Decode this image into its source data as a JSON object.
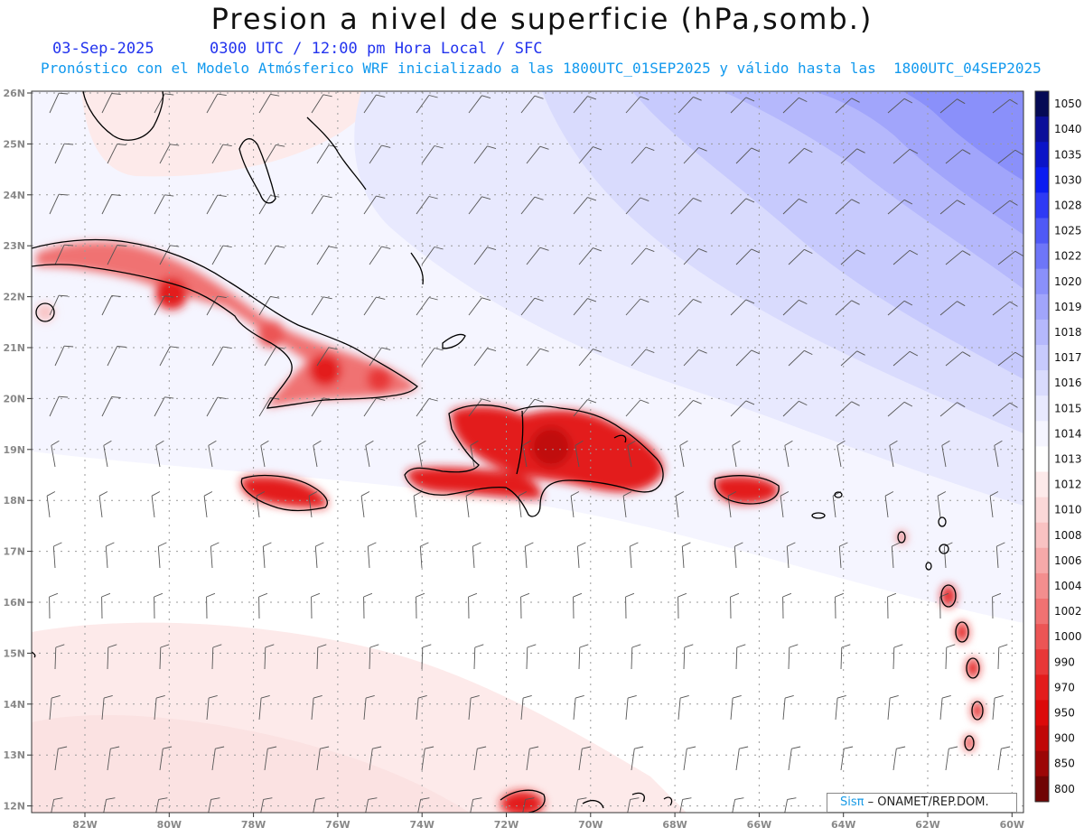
{
  "title": "Presion a nivel de superficie (hPa,somb.)",
  "subtitle_date": "03-Sep-2025",
  "subtitle_time": "0300 UTC / 12:00 pm Hora Local / SFC",
  "subtitle_model": "Pronóstico con el Modelo Atmósferico WRF inicializado a las 1800UTC_01SEP2025 y válido hasta las  1800UTC_04SEP2025",
  "credit_sis": "Sisπ",
  "credit_org": " – ONAMET/REP.DOM.",
  "lat_labels": [
    "26N",
    "25N",
    "24N",
    "23N",
    "22N",
    "21N",
    "20N",
    "19N",
    "18N",
    "17N",
    "16N",
    "15N",
    "14N",
    "13N",
    "12N"
  ],
  "lon_labels": [
    "82W",
    "80W",
    "78W",
    "76W",
    "74W",
    "72W",
    "70W",
    "68W",
    "66W",
    "64W",
    "62W",
    "60W"
  ],
  "colorbar": [
    {
      "label": "1050",
      "color": "#050a55"
    },
    {
      "label": "1040",
      "color": "#0b0f9a"
    },
    {
      "label": "1035",
      "color": "#0a14c8"
    },
    {
      "label": "1030",
      "color": "#0a1cf2"
    },
    {
      "label": "1028",
      "color": "#2e3af5"
    },
    {
      "label": "1025",
      "color": "#4f59f6"
    },
    {
      "label": "1022",
      "color": "#6e76f8"
    },
    {
      "label": "1020",
      "color": "#8a90fa"
    },
    {
      "label": "1019",
      "color": "#a1a5fb"
    },
    {
      "label": "1018",
      "color": "#b5b8fc"
    },
    {
      "label": "1017",
      "color": "#c7cafd"
    },
    {
      "label": "1016",
      "color": "#d9dbfd"
    },
    {
      "label": "1015",
      "color": "#e8e9fe"
    },
    {
      "label": "1014",
      "color": "#f5f5ff"
    },
    {
      "label": "1013",
      "color": "#ffffff"
    },
    {
      "label": "1012",
      "color": "#fdeaea"
    },
    {
      "label": "1010",
      "color": "#fbd8d8"
    },
    {
      "label": "1008",
      "color": "#f9c2c2"
    },
    {
      "label": "1006",
      "color": "#f6a9a9"
    },
    {
      "label": "1004",
      "color": "#f38e8e"
    },
    {
      "label": "1002",
      "color": "#f07272"
    },
    {
      "label": "1000",
      "color": "#ec5555"
    },
    {
      "label": "990",
      "color": "#e83838"
    },
    {
      "label": "970",
      "color": "#e31c1c"
    },
    {
      "label": "950",
      "color": "#dc0a0a"
    },
    {
      "label": "900",
      "color": "#c00808"
    },
    {
      "label": "850",
      "color": "#9c0606"
    },
    {
      "label": "800",
      "color": "#700404"
    }
  ]
}
